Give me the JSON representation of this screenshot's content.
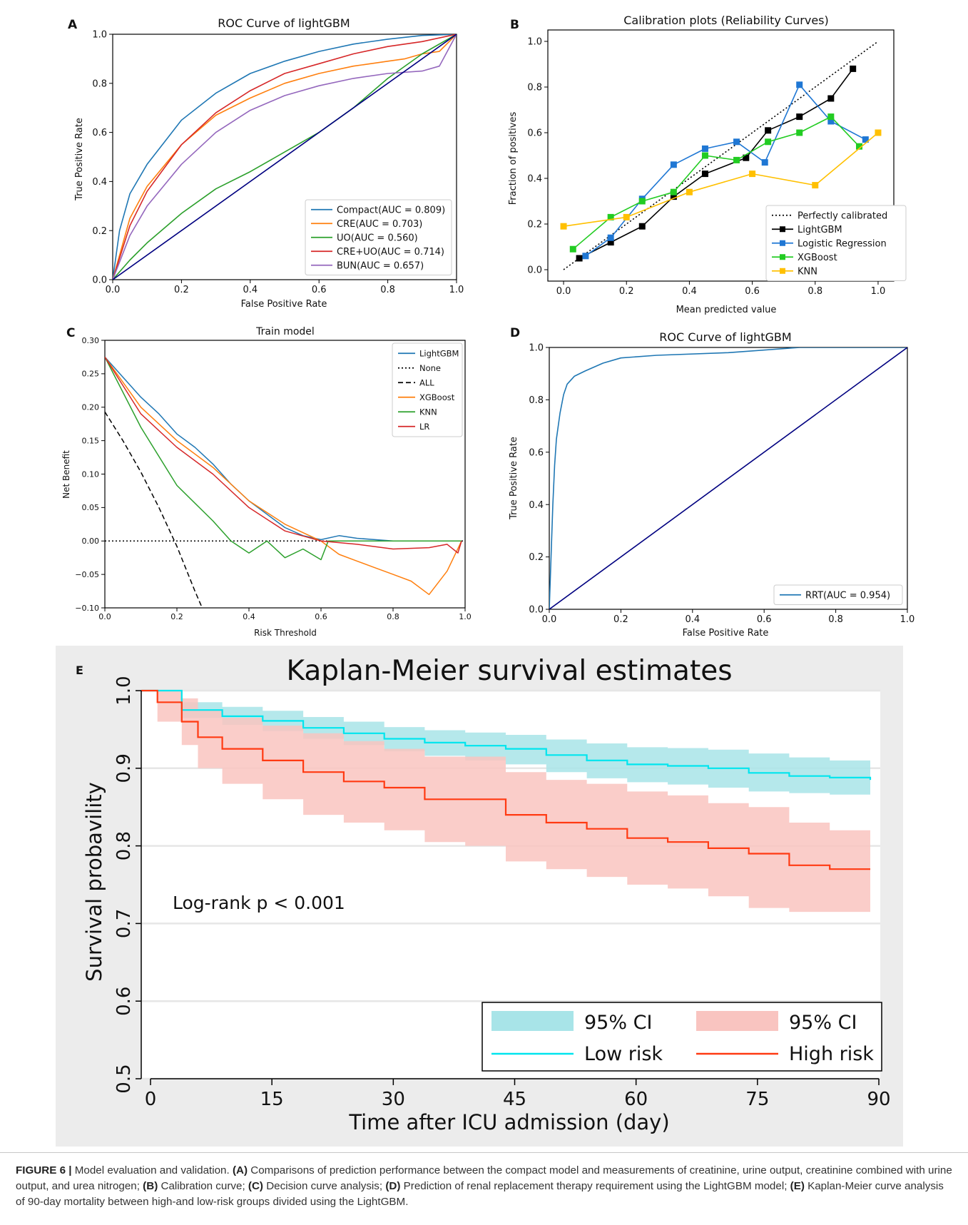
{
  "panels": {
    "A": {
      "letter": "A",
      "chart_data": {
        "type": "line",
        "title": "ROC Curve of lightGBM",
        "xlabel": "False Positive Rate",
        "ylabel": "True Positive Rate",
        "xlim": [
          0,
          1
        ],
        "ylim": [
          0,
          1
        ],
        "xticks": [
          "0.0",
          "0.2",
          "0.4",
          "0.6",
          "0.8",
          "1.0"
        ],
        "yticks": [
          "0.0",
          "0.2",
          "0.4",
          "0.6",
          "0.8",
          "1.0"
        ],
        "legend_position": "lower right",
        "series": [
          {
            "name": "Compact(AUC = 0.809)",
            "color": "#1f77b4",
            "x": [
              0,
              0.02,
              0.05,
              0.1,
              0.15,
              0.2,
              0.3,
              0.4,
              0.5,
              0.6,
              0.7,
              0.8,
              0.9,
              1.0
            ],
            "y": [
              0,
              0.2,
              0.35,
              0.47,
              0.56,
              0.65,
              0.76,
              0.84,
              0.89,
              0.93,
              0.96,
              0.98,
              0.995,
              1.0
            ]
          },
          {
            "name": "CRE(AUC = 0.703)",
            "color": "#ff7f0e",
            "x": [
              0,
              0.05,
              0.1,
              0.2,
              0.3,
              0.4,
              0.5,
              0.6,
              0.7,
              0.8,
              0.85,
              0.9,
              0.95,
              1.0
            ],
            "y": [
              0,
              0.25,
              0.38,
              0.55,
              0.67,
              0.74,
              0.8,
              0.84,
              0.87,
              0.89,
              0.9,
              0.92,
              0.93,
              1.0
            ]
          },
          {
            "name": "UO(AUC = 0.560)",
            "color": "#2ca02c",
            "x": [
              0,
              0.05,
              0.1,
              0.2,
              0.3,
              0.4,
              0.5,
              0.6,
              0.7,
              0.8,
              0.9,
              1.0
            ],
            "y": [
              0,
              0.08,
              0.15,
              0.27,
              0.37,
              0.44,
              0.52,
              0.6,
              0.7,
              0.82,
              0.92,
              1.0
            ]
          },
          {
            "name": "CRE+UO(AUC = 0.714)",
            "color": "#d62728",
            "x": [
              0,
              0.05,
              0.1,
              0.2,
              0.3,
              0.4,
              0.5,
              0.6,
              0.7,
              0.8,
              0.9,
              1.0
            ],
            "y": [
              0,
              0.22,
              0.36,
              0.55,
              0.68,
              0.77,
              0.84,
              0.88,
              0.92,
              0.95,
              0.97,
              1.0
            ]
          },
          {
            "name": "BUN(AUC = 0.657)",
            "color": "#9467bd",
            "x": [
              0,
              0.05,
              0.1,
              0.2,
              0.3,
              0.4,
              0.5,
              0.6,
              0.7,
              0.8,
              0.9,
              0.95,
              1.0
            ],
            "y": [
              0,
              0.18,
              0.3,
              0.47,
              0.6,
              0.69,
              0.75,
              0.79,
              0.82,
              0.84,
              0.85,
              0.87,
              1.0
            ]
          },
          {
            "name": "",
            "color": "#000080",
            "x": [
              0,
              1
            ],
            "y": [
              0,
              1
            ]
          }
        ]
      }
    },
    "B": {
      "letter": "B",
      "chart_data": {
        "type": "line",
        "title": "Calibration plots  (Reliability Curves)",
        "xlabel": "Mean predicted value",
        "ylabel": "Fraction of positives",
        "xlim": [
          -0.05,
          1.05
        ],
        "ylim": [
          -0.05,
          1.05
        ],
        "xticks": [
          "0.0",
          "0.2",
          "0.4",
          "0.6",
          "0.8",
          "1.0"
        ],
        "yticks": [
          "0.0",
          "0.2",
          "0.4",
          "0.6",
          "0.8",
          "1.0"
        ],
        "legend_position": "lower right",
        "series": [
          {
            "name": "Perfectly calibrated",
            "color": "#000000",
            "style": "dotted",
            "x": [
              0,
              1
            ],
            "y": [
              0,
              1
            ]
          },
          {
            "name": "LightGBM",
            "color": "#000000",
            "marker": "square",
            "x": [
              0.05,
              0.15,
              0.25,
              0.35,
              0.45,
              0.58,
              0.65,
              0.75,
              0.85,
              0.92
            ],
            "y": [
              0.05,
              0.12,
              0.19,
              0.32,
              0.42,
              0.49,
              0.61,
              0.67,
              0.75,
              0.88
            ]
          },
          {
            "name": "Logistic Regression",
            "color": "#1f77d4",
            "marker": "square",
            "x": [
              0.07,
              0.15,
              0.25,
              0.35,
              0.45,
              0.55,
              0.64,
              0.75,
              0.85,
              0.96
            ],
            "y": [
              0.06,
              0.14,
              0.31,
              0.46,
              0.53,
              0.56,
              0.47,
              0.81,
              0.65,
              0.57
            ]
          },
          {
            "name": "XGBoost",
            "color": "#22cc22",
            "marker": "square",
            "x": [
              0.03,
              0.15,
              0.25,
              0.35,
              0.45,
              0.55,
              0.65,
              0.75,
              0.85,
              0.94
            ],
            "y": [
              0.09,
              0.23,
              0.3,
              0.34,
              0.5,
              0.48,
              0.56,
              0.6,
              0.67,
              0.54
            ]
          },
          {
            "name": "KNN",
            "color": "#ffc000",
            "marker": "square",
            "x": [
              0.0,
              0.2,
              0.4,
              0.6,
              0.8,
              1.0
            ],
            "y": [
              0.19,
              0.23,
              0.34,
              0.42,
              0.37,
              0.6
            ]
          }
        ]
      }
    },
    "C": {
      "letter": "C",
      "chart_data": {
        "type": "line",
        "title": "Train model",
        "xlabel": "Risk Threshold",
        "ylabel": "Net Benefit",
        "xlim": [
          0,
          1
        ],
        "ylim": [
          -0.1,
          0.3
        ],
        "xticks": [
          "0.0",
          "0.2",
          "0.4",
          "0.6",
          "0.8",
          "1.0"
        ],
        "yticks": [
          "−0.10",
          "−0.05",
          "0.00",
          "0.05",
          "0.10",
          "0.15",
          "0.20",
          "0.25",
          "0.30"
        ],
        "legend_position": "upper right",
        "series": [
          {
            "name": "LightGBM",
            "color": "#1f77b4",
            "x": [
              0,
              0.05,
              0.1,
              0.15,
              0.2,
              0.25,
              0.3,
              0.35,
              0.4,
              0.45,
              0.5,
              0.55,
              0.6,
              0.65,
              0.7,
              0.75,
              0.8
            ],
            "y": [
              0.275,
              0.245,
              0.215,
              0.19,
              0.16,
              0.14,
              0.115,
              0.085,
              0.06,
              0.04,
              0.02,
              0.008,
              0.002,
              0.008,
              0.004,
              0.002,
              0.0
            ]
          },
          {
            "name": "None",
            "color": "#000000",
            "style": "dotted",
            "x": [
              0,
              1
            ],
            "y": [
              0,
              0
            ]
          },
          {
            "name": "ALL",
            "color": "#000000",
            "style": "dashed",
            "x": [
              0,
              0.05,
              0.1,
              0.15,
              0.2,
              0.25,
              0.27
            ],
            "y": [
              0.193,
              0.15,
              0.103,
              0.05,
              -0.008,
              -0.075,
              -0.1
            ]
          },
          {
            "name": "XGBoost",
            "color": "#ff7f0e",
            "x": [
              0,
              0.1,
              0.2,
              0.3,
              0.4,
              0.5,
              0.6,
              0.65,
              0.7,
              0.75,
              0.8,
              0.85,
              0.9,
              0.95,
              0.99
            ],
            "y": [
              0.275,
              0.2,
              0.15,
              0.11,
              0.06,
              0.025,
              0.0,
              -0.02,
              -0.03,
              -0.04,
              -0.05,
              -0.06,
              -0.08,
              -0.045,
              0.0
            ]
          },
          {
            "name": "KNN",
            "color": "#2ca02c",
            "x": [
              0,
              0.1,
              0.2,
              0.3,
              0.35,
              0.4,
              0.45,
              0.5,
              0.55,
              0.6,
              0.62,
              0.7,
              0.8,
              0.99
            ],
            "y": [
              0.275,
              0.17,
              0.083,
              0.03,
              0.0,
              -0.018,
              0.0,
              -0.025,
              -0.012,
              -0.028,
              0.0,
              0.0,
              0.0,
              0.0
            ]
          },
          {
            "name": "LR",
            "color": "#d62728",
            "x": [
              0,
              0.1,
              0.2,
              0.3,
              0.4,
              0.5,
              0.6,
              0.7,
              0.8,
              0.9,
              0.95,
              0.98,
              0.99
            ],
            "y": [
              0.275,
              0.19,
              0.14,
              0.1,
              0.05,
              0.015,
              0.0,
              -0.005,
              -0.012,
              -0.01,
              -0.005,
              -0.018,
              0.0
            ]
          }
        ]
      }
    },
    "D": {
      "letter": "D",
      "chart_data": {
        "type": "line",
        "title": "ROC Curve of lightGBM",
        "xlabel": "False Positive Rate",
        "ylabel": "True Positive Rate",
        "xlim": [
          0,
          1
        ],
        "ylim": [
          0,
          1
        ],
        "xticks": [
          "0.0",
          "0.2",
          "0.4",
          "0.6",
          "0.8",
          "1.0"
        ],
        "yticks": [
          "0.0",
          "0.2",
          "0.4",
          "0.6",
          "0.8",
          "1.0"
        ],
        "legend_position": "lower right",
        "series": [
          {
            "name": "RRT(AUC = 0.954)",
            "color": "#1f77b4",
            "x": [
              0,
              0.005,
              0.01,
              0.015,
              0.02,
              0.03,
              0.04,
              0.05,
              0.07,
              0.1,
              0.15,
              0.2,
              0.3,
              0.5,
              0.7,
              1.0
            ],
            "y": [
              0,
              0.2,
              0.4,
              0.55,
              0.65,
              0.75,
              0.82,
              0.86,
              0.89,
              0.91,
              0.94,
              0.96,
              0.97,
              0.98,
              1.0,
              1.0
            ]
          },
          {
            "name": "",
            "color": "#000080",
            "x": [
              0,
              1
            ],
            "y": [
              0,
              1
            ]
          }
        ]
      }
    },
    "E": {
      "letter": "E",
      "chart_data": {
        "type": "line",
        "title": "Kaplan-Meier survival estimates",
        "xlabel": "Time after ICU admission (day)",
        "ylabel": "Survival probavility",
        "xlim": [
          0,
          90
        ],
        "ylim": [
          0.5,
          1.0
        ],
        "xticks": [
          "0",
          "15",
          "30",
          "45",
          "60",
          "75",
          "90"
        ],
        "yticks": [
          "0.5",
          "0.6",
          "0.7",
          "0.8",
          "0.9",
          "1.0"
        ],
        "annotation": "Log-rank p < 0.001",
        "legend_position": "lower right",
        "legend": [
          "95% CI",
          "95% CI",
          "Low risk",
          "High risk"
        ],
        "series": [
          {
            "name": "Low risk",
            "color": "#00e5ee",
            "band_color": "#a8e4e8",
            "x": [
              0,
              5,
              10,
              15,
              20,
              25,
              30,
              35,
              40,
              45,
              50,
              55,
              60,
              65,
              70,
              75,
              80,
              85,
              90
            ],
            "y": [
              1.0,
              0.975,
              0.967,
              0.961,
              0.952,
              0.945,
              0.938,
              0.933,
              0.929,
              0.925,
              0.917,
              0.91,
              0.905,
              0.903,
              0.9,
              0.894,
              0.89,
              0.888,
              0.885
            ],
            "ci_low": [
              1.0,
              0.965,
              0.956,
              0.948,
              0.938,
              0.93,
              0.922,
              0.916,
              0.91,
              0.905,
              0.895,
              0.887,
              0.882,
              0.879,
              0.875,
              0.87,
              0.868,
              0.866,
              0.864
            ],
            "ci_high": [
              1.0,
              0.985,
              0.979,
              0.974,
              0.966,
              0.96,
              0.953,
              0.949,
              0.946,
              0.943,
              0.937,
              0.932,
              0.927,
              0.926,
              0.924,
              0.919,
              0.914,
              0.91,
              0.905
            ]
          },
          {
            "name": "High risk",
            "color": "#ff3a12",
            "band_color": "#f9c4c0",
            "x": [
              0,
              2,
              5,
              7,
              10,
              15,
              20,
              25,
              30,
              35,
              40,
              45,
              50,
              55,
              60,
              65,
              70,
              75,
              80,
              85,
              90
            ],
            "y": [
              1.0,
              0.985,
              0.96,
              0.94,
              0.925,
              0.91,
              0.895,
              0.883,
              0.875,
              0.86,
              0.86,
              0.84,
              0.83,
              0.822,
              0.81,
              0.805,
              0.797,
              0.79,
              0.775,
              0.77,
              0.77
            ],
            "ci_low": [
              1.0,
              0.96,
              0.93,
              0.9,
              0.88,
              0.86,
              0.84,
              0.83,
              0.82,
              0.805,
              0.8,
              0.78,
              0.77,
              0.76,
              0.75,
              0.745,
              0.735,
              0.72,
              0.715,
              0.715,
              0.715
            ],
            "ci_high": [
              1.0,
              1.0,
              0.99,
              0.975,
              0.965,
              0.955,
              0.945,
              0.935,
              0.925,
              0.915,
              0.915,
              0.895,
              0.885,
              0.88,
              0.87,
              0.865,
              0.855,
              0.85,
              0.83,
              0.82,
              0.82
            ]
          }
        ]
      }
    }
  },
  "caption": {
    "label": "FIGURE 6 |",
    "intro": " Model evaluation and validation. ",
    "parts": [
      {
        "tag": "(A)",
        "text": " Comparisons of prediction performance between the compact model and measurements of creatinine, urine output, creatinine combined with urine output, and urea nitrogen; "
      },
      {
        "tag": "(B)",
        "text": " Calibration curve; "
      },
      {
        "tag": "(C)",
        "text": " Decision curve analysis; "
      },
      {
        "tag": "(D)",
        "text": " Prediction of renal replacement therapy requirement using the LightGBM model; "
      },
      {
        "tag": "(E)",
        "text": " Kaplan-Meier curve analysis of 90-day mortality between high-and low-risk groups divided using the LightGBM."
      }
    ]
  }
}
